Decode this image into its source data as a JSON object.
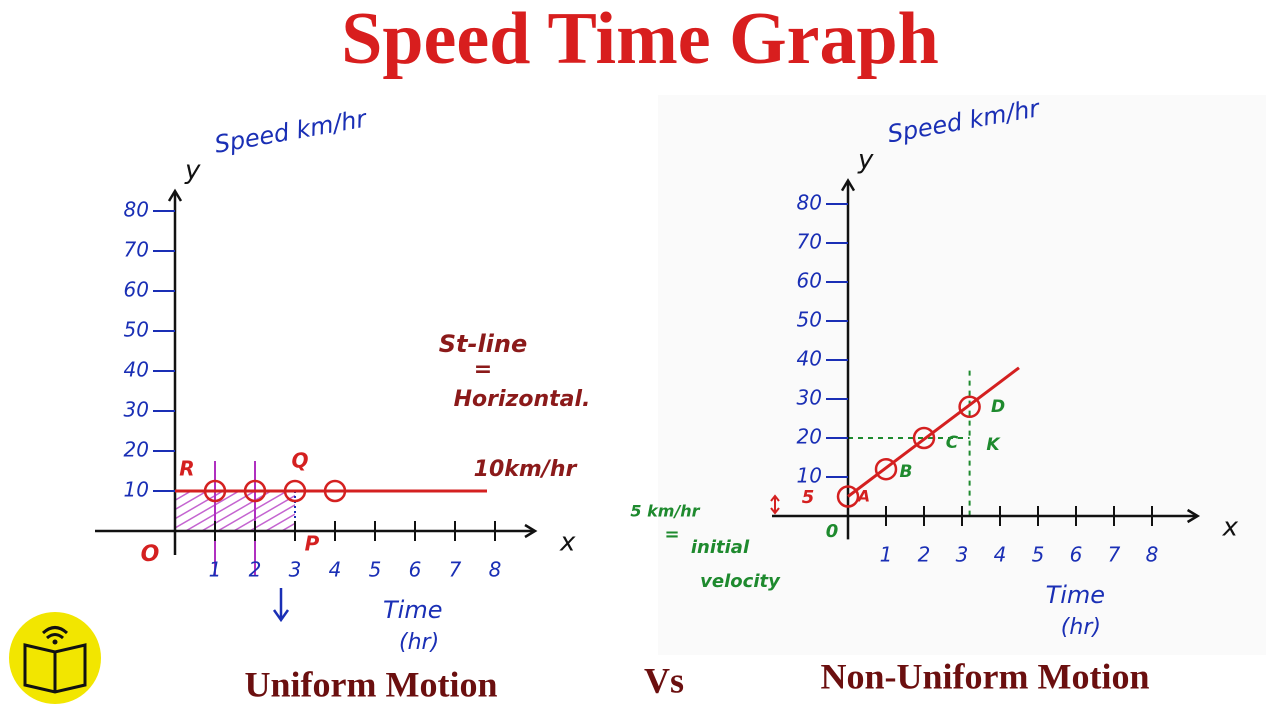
{
  "title": "Speed Time Graph",
  "vs": "Vs",
  "chart_data": [
    {
      "type": "line",
      "title": "Uniform Motion",
      "y_letter": "y",
      "ylabel": "Speed km/hr",
      "x_letter": "x",
      "xlabel": "Time",
      "xunit": "(hr)",
      "xlim": [
        -2,
        9
      ],
      "ylim": [
        -6,
        85
      ],
      "xticks": [
        1,
        2,
        3,
        4,
        5,
        6,
        7,
        8
      ],
      "yticks": [
        10,
        20,
        30,
        40,
        50,
        60,
        70,
        80
      ],
      "shade_under_points_to": 2,
      "series": [
        {
          "color": "#d42020",
          "x": [
            0,
            7.8
          ],
          "values": [
            10,
            10
          ],
          "markers": false
        },
        {
          "color": "#d42020",
          "x": [
            1,
            2,
            3,
            4
          ],
          "values": [
            10,
            10,
            10,
            10
          ],
          "markers": true
        }
      ],
      "annotations": [
        {
          "text": "O",
          "color": "#d42020"
        },
        {
          "text": "R",
          "color": "#d42020"
        },
        {
          "text": "Q",
          "color": "#d42020"
        },
        {
          "text": "P",
          "color": "#d42020"
        },
        {
          "text": "St-line",
          "color": "#8b1a1a"
        },
        {
          "text": "=",
          "color": "#8b1a1a"
        },
        {
          "text": "Horizontal.",
          "color": "#8b1a1a"
        },
        {
          "text": "10km/hr",
          "color": "#8b1a1a"
        }
      ]
    },
    {
      "type": "line",
      "title": "Non-Uniform Motion",
      "y_letter": "y",
      "ylabel": "Speed km/hr",
      "x_letter": "x",
      "xlabel": "Time",
      "xunit": "(hr)",
      "xlim": [
        -2,
        9.2
      ],
      "ylim": [
        -6,
        86
      ],
      "xticks": [
        1,
        2,
        3,
        4,
        5,
        6,
        7,
        8
      ],
      "yticks": [
        10,
        20,
        30,
        40,
        50,
        60,
        70,
        80
      ],
      "series": [
        {
          "color": "#d42020",
          "x": [
            0,
            4.5
          ],
          "values": [
            5,
            38
          ],
          "markers": false
        },
        {
          "color": "#d42020",
          "x": [
            0,
            1,
            2,
            3.2
          ],
          "values": [
            5,
            12,
            20,
            28
          ],
          "markers": true
        }
      ],
      "annotations": [
        {
          "text": "0",
          "color": "#1e8a2e"
        },
        {
          "text": "5",
          "color": "#d42020"
        },
        {
          "text": "A",
          "color": "#d42020"
        },
        {
          "text": "B",
          "color": "#1e8a2e"
        },
        {
          "text": "C",
          "color": "#1e8a2e"
        },
        {
          "text": "D",
          "color": "#1e8a2e"
        },
        {
          "text": "K",
          "color": "#1e8a2e"
        },
        {
          "text": "5 km/hr",
          "color": "#1e8a2e"
        },
        {
          "text": "=",
          "color": "#1e8a2e"
        },
        {
          "text": "initial",
          "color": "#1e8a2e"
        },
        {
          "text": "velocity",
          "color": "#1e8a2e"
        }
      ]
    }
  ]
}
